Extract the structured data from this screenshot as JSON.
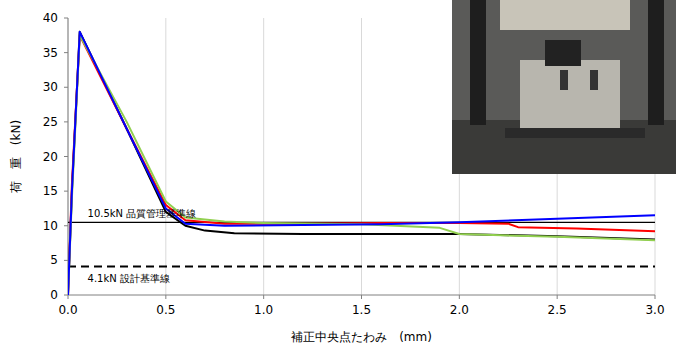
{
  "chart_data": {
    "type": "line",
    "x_label": "補正中央点たわみ　(mm)",
    "y_label": "荷　重　(kN)",
    "xlim": [
      0,
      3.0
    ],
    "ylim": [
      0,
      40
    ],
    "xticks": [
      {
        "value": 0,
        "label": "0.0"
      },
      0.5,
      {
        "value": 1,
        "label": "1.0"
      },
      1.5,
      {
        "value": 2,
        "label": "2.0"
      },
      2.5,
      {
        "value": 3,
        "label": "3.0"
      }
    ],
    "yticks": [
      0,
      5,
      10,
      15,
      20,
      25,
      30,
      35,
      40
    ],
    "grid": "x",
    "series": [
      {
        "color": "#000000",
        "x": [
          0,
          0.02,
          0.06,
          0.3,
          0.5,
          0.6,
          0.7,
          0.85,
          1.2,
          1.6,
          2.0,
          2.5,
          3.0
        ],
        "values": [
          0,
          15,
          38,
          24,
          12,
          10,
          9.3,
          8.9,
          8.8,
          8.8,
          8.8,
          8.5,
          8.0
        ]
      },
      {
        "color": "#ff0000",
        "x": [
          0,
          0.02,
          0.06,
          0.3,
          0.5,
          0.6,
          0.8,
          1.2,
          1.6,
          2.0,
          2.25,
          2.3,
          2.6,
          3.0
        ],
        "values": [
          0,
          16,
          37.5,
          24,
          13,
          10.8,
          10.3,
          10.3,
          10.4,
          10.4,
          10.3,
          9.8,
          9.6,
          9.2
        ]
      },
      {
        "color": "#92d050",
        "x": [
          0,
          0.02,
          0.06,
          0.3,
          0.5,
          0.6,
          0.8,
          1.0,
          1.5,
          1.9,
          2.0,
          2.5,
          3.0
        ],
        "values": [
          0,
          14,
          37.5,
          25,
          13.5,
          11.2,
          10.6,
          10.4,
          10.2,
          9.7,
          8.8,
          8.4,
          7.9
        ]
      },
      {
        "color": "#0000ff",
        "x": [
          0,
          0.02,
          0.06,
          0.3,
          0.5,
          0.6,
          0.8,
          1.2,
          1.6,
          2.0,
          2.5,
          3.0
        ],
        "values": [
          0,
          15,
          38,
          24,
          12.5,
          10.3,
          10.0,
          10.1,
          10.2,
          10.5,
          11.0,
          11.5
        ]
      }
    ],
    "reference_lines": [
      {
        "value": 10.5,
        "label": "10.5kN 品質管理基準線",
        "color": "#000000",
        "line_style": "solid"
      },
      {
        "value": 4.1,
        "label": "4.1kN 設計基準線",
        "color": "#000000",
        "line_style": "dashed"
      }
    ]
  }
}
